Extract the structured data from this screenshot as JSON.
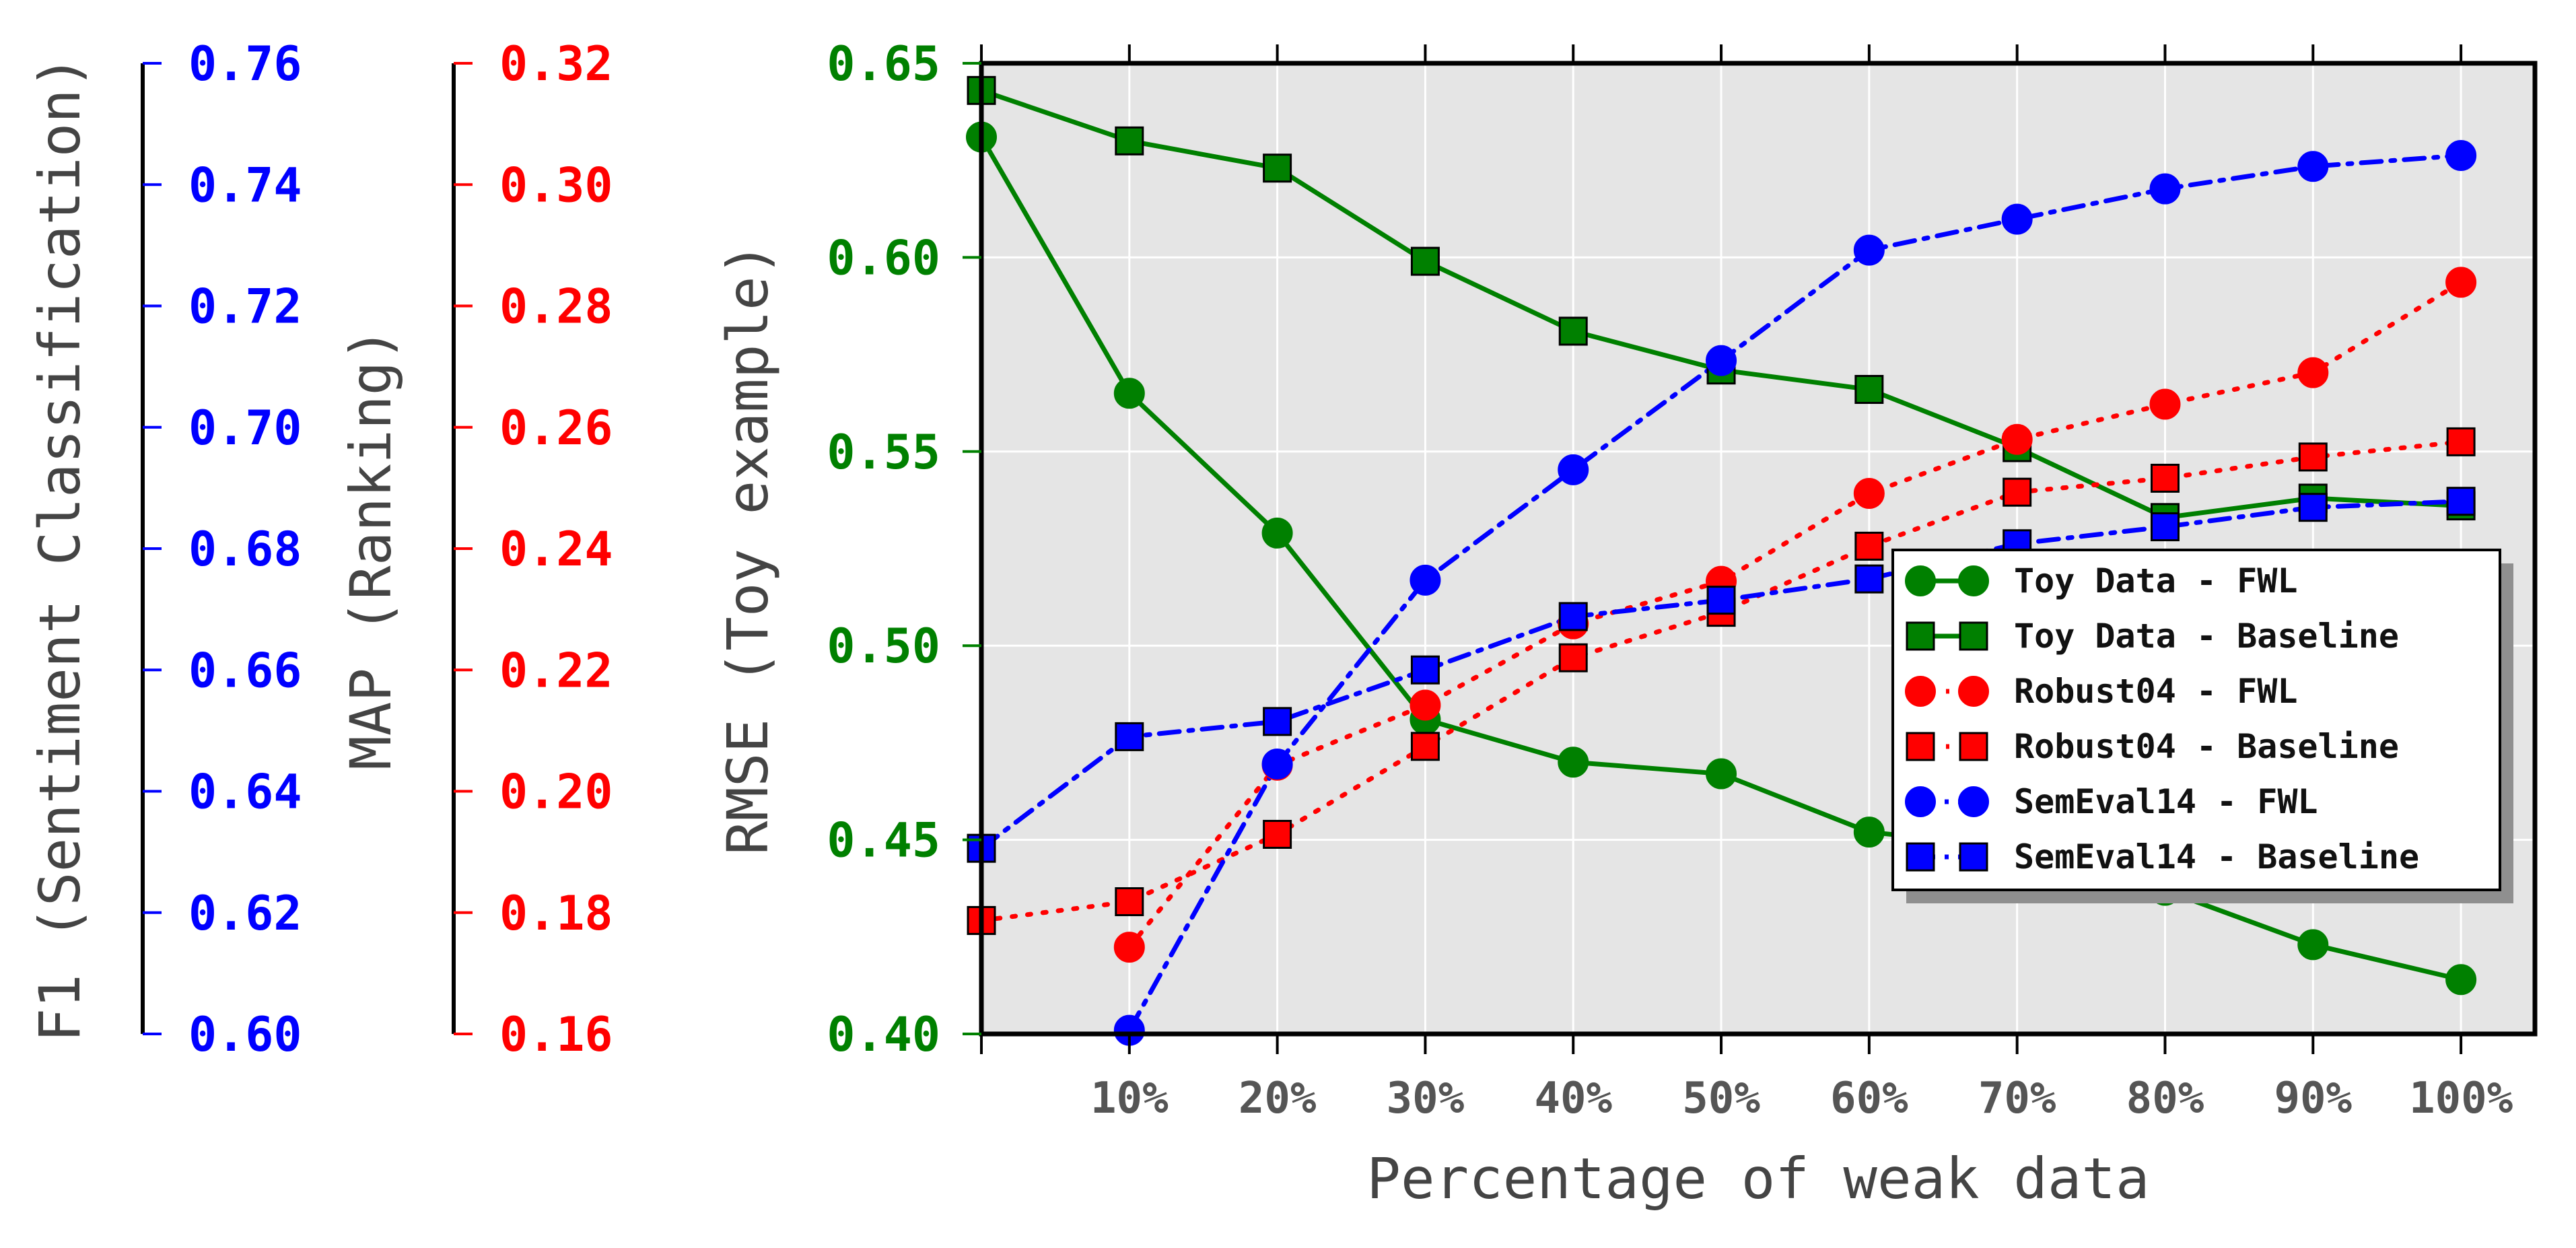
{
  "chart_data": {
    "type": "line",
    "xlabel": "Percentage of weak data",
    "x": [
      0,
      10,
      20,
      30,
      40,
      50,
      60,
      70,
      80,
      90,
      100
    ],
    "x_tick_values": [
      10,
      20,
      30,
      40,
      50,
      60,
      70,
      80,
      90,
      100
    ],
    "x_tick_labels": [
      "10%",
      "20%",
      "30%",
      "40%",
      "50%",
      "60%",
      "70%",
      "80%",
      "90%",
      "100%"
    ],
    "xlim": [
      0,
      105
    ],
    "grid": true,
    "legend_placement": "center-right",
    "axes": {
      "rmse": {
        "label": "RMSE (Toy example)",
        "color": "#008000",
        "range": [
          0.4,
          0.65
        ],
        "ticks": [
          0.4,
          0.45,
          0.5,
          0.55,
          0.6,
          0.65
        ],
        "tick_labels": [
          "0.40",
          "0.45",
          "0.50",
          "0.55",
          "0.60",
          "0.65"
        ]
      },
      "map": {
        "label": "MAP (Ranking)",
        "color": "#ff0000",
        "range": [
          0.16,
          0.32
        ],
        "ticks": [
          0.16,
          0.18,
          0.2,
          0.22,
          0.24,
          0.26,
          0.28,
          0.3,
          0.32
        ],
        "tick_labels": [
          "0.16",
          "0.18",
          "0.20",
          "0.22",
          "0.24",
          "0.26",
          "0.28",
          "0.30",
          "0.32"
        ]
      },
      "f1": {
        "label": "F1 (Sentiment Classification)",
        "color": "#0000ff",
        "range": [
          0.6,
          0.76
        ],
        "ticks": [
          0.6,
          0.62,
          0.64,
          0.66,
          0.68,
          0.7,
          0.72,
          0.74,
          0.76
        ],
        "tick_labels": [
          "0.60",
          "0.62",
          "0.64",
          "0.66",
          "0.68",
          "0.70",
          "0.72",
          "0.74",
          "0.76"
        ]
      }
    },
    "series": [
      {
        "name": "Toy Data - FWL",
        "axis": "rmse",
        "color": "#008000",
        "marker": "circle",
        "linestyle": "solid",
        "x": [
          0,
          10,
          20,
          30,
          40,
          50,
          60,
          70,
          80,
          90,
          100
        ],
        "values": [
          0.631,
          0.565,
          0.529,
          0.481,
          0.47,
          0.467,
          0.452,
          0.448,
          0.437,
          0.423,
          0.414
        ]
      },
      {
        "name": "Toy Data - Baseline",
        "axis": "rmse",
        "color": "#008000",
        "marker": "square",
        "linestyle": "solid",
        "x": [
          0,
          10,
          20,
          30,
          40,
          50,
          60,
          70,
          80,
          90,
          100
        ],
        "values": [
          0.643,
          0.63,
          0.623,
          0.599,
          0.581,
          0.571,
          0.566,
          0.551,
          0.533,
          0.538,
          0.536
        ]
      },
      {
        "name": "Robust04 - FWL",
        "axis": "map",
        "color": "#ff0000",
        "marker": "circle",
        "linestyle": "dotted",
        "x": [
          10,
          20,
          30,
          40,
          50,
          60,
          70,
          80,
          90,
          100
        ],
        "values": [
          0.1743,
          0.2043,
          0.2142,
          0.2276,
          0.2346,
          0.2491,
          0.258,
          0.2638,
          0.269,
          0.2839
        ]
      },
      {
        "name": "Robust04 - Baseline",
        "axis": "map",
        "color": "#ff0000",
        "marker": "square",
        "linestyle": "dotted",
        "x": [
          0,
          10,
          20,
          30,
          40,
          50,
          60,
          70,
          80,
          90,
          100
        ],
        "values": [
          0.1787,
          0.1818,
          0.1929,
          0.2074,
          0.222,
          0.2295,
          0.2404,
          0.2493,
          0.2516,
          0.2551,
          0.2576
        ]
      },
      {
        "name": "SemEval14 - FWL",
        "axis": "f1",
        "color": "#0000ff",
        "marker": "circle",
        "linestyle": "dashdot",
        "x": [
          10,
          20,
          30,
          40,
          50,
          60,
          70,
          80,
          90,
          100
        ],
        "values": [
          0.6006,
          0.6445,
          0.6748,
          0.693,
          0.711,
          0.7292,
          0.7343,
          0.7393,
          0.743,
          0.7448
        ]
      },
      {
        "name": "SemEval14 - Baseline",
        "axis": "f1",
        "color": "#0000ff",
        "marker": "square",
        "linestyle": "dashdot",
        "x": [
          0,
          10,
          20,
          30,
          40,
          50,
          60,
          70,
          80,
          90,
          100
        ],
        "values": [
          0.6306,
          0.649,
          0.6515,
          0.66,
          0.6688,
          0.6715,
          0.675,
          0.6808,
          0.6836,
          0.6868,
          0.6878
        ]
      }
    ]
  }
}
